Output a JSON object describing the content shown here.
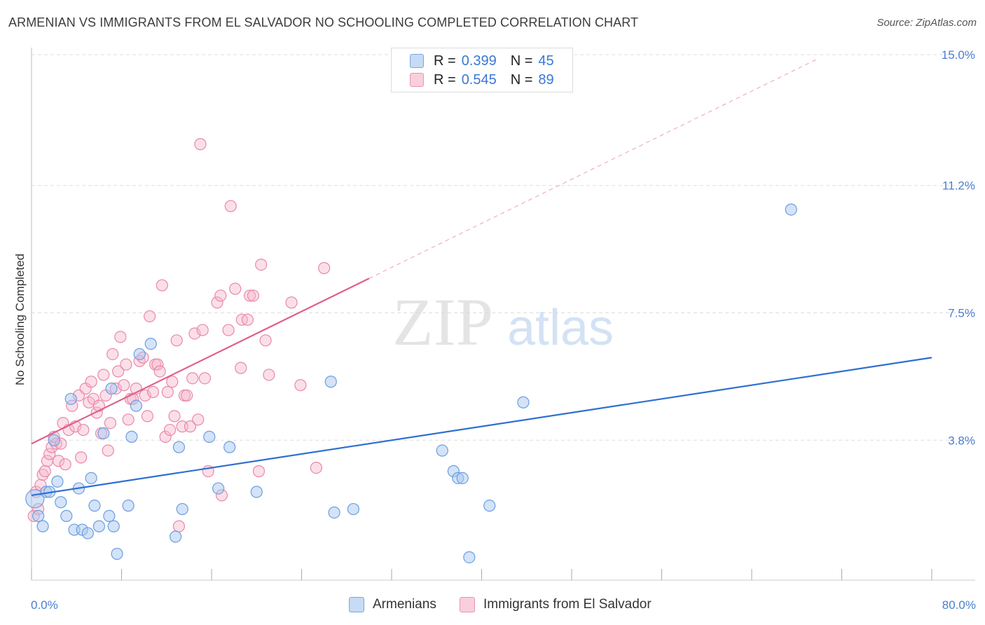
{
  "header": {
    "title": "ARMENIAN VS IMMIGRANTS FROM EL SALVADOR NO SCHOOLING COMPLETED CORRELATION CHART",
    "source": "Source: ZipAtlas.com"
  },
  "legend_top": {
    "rows": [
      {
        "r_label": "R =",
        "r_value": "0.399",
        "n_label": "N =",
        "n_value": "45"
      },
      {
        "r_label": "R =",
        "r_value": "0.545",
        "n_label": "N =",
        "n_value": "89"
      }
    ]
  },
  "legend_bottom": {
    "items": [
      {
        "label": "Armenians"
      },
      {
        "label": "Immigrants from El Salvador"
      }
    ]
  },
  "watermark": {
    "zip": "ZIP",
    "atlas": "atlas"
  },
  "colors": {
    "blue_fill": "#a9c8f0",
    "blue_stroke": "#6a9ee0",
    "blue_line": "#2e6fd0",
    "pink_fill": "#f6b8cb",
    "pink_stroke": "#e889a8",
    "pink_line": "#e0608a",
    "axis_text": "#4a7fd0",
    "grid": "#dddddd"
  },
  "chart_data": {
    "type": "scatter",
    "title": "ARMENIAN VS IMMIGRANTS FROM EL SALVADOR NO SCHOOLING COMPLETED CORRELATION CHART",
    "xlabel": "",
    "ylabel": "No Schooling Completed",
    "xlim": [
      0,
      80
    ],
    "ylim": [
      0,
      15
    ],
    "x_tick_labels": [
      "0.0%",
      "80.0%"
    ],
    "y_ticks": [
      3.8,
      7.5,
      11.2,
      15.0
    ],
    "y_tick_labels": [
      "3.8%",
      "7.5%",
      "11.2%",
      "15.0%"
    ],
    "grid": true,
    "legend_position": "top-center",
    "series": [
      {
        "name": "Armenians",
        "color": "#a9c8f0",
        "r": 0.399,
        "n": 45,
        "trend": {
          "x0": 0,
          "y0": 2.2,
          "x1": 80,
          "y1": 6.2,
          "dashed_to": null
        },
        "points": [
          [
            0.3,
            2.1
          ],
          [
            0.6,
            1.6
          ],
          [
            1.0,
            1.3
          ],
          [
            1.3,
            2.3
          ],
          [
            1.6,
            2.3
          ],
          [
            2.0,
            3.8
          ],
          [
            2.3,
            2.6
          ],
          [
            2.6,
            2.0
          ],
          [
            3.1,
            1.6
          ],
          [
            3.5,
            5.0
          ],
          [
            3.8,
            1.2
          ],
          [
            4.2,
            2.4
          ],
          [
            4.5,
            1.2
          ],
          [
            5.0,
            1.1
          ],
          [
            5.3,
            2.7
          ],
          [
            5.6,
            1.9
          ],
          [
            6.0,
            1.3
          ],
          [
            6.4,
            4.0
          ],
          [
            6.9,
            1.6
          ],
          [
            7.1,
            5.3
          ],
          [
            7.3,
            1.3
          ],
          [
            7.6,
            0.5
          ],
          [
            8.6,
            1.9
          ],
          [
            8.9,
            3.9
          ],
          [
            9.3,
            4.8
          ],
          [
            9.6,
            6.3
          ],
          [
            10.6,
            6.6
          ],
          [
            12.8,
            1.0
          ],
          [
            13.1,
            3.6
          ],
          [
            13.4,
            1.8
          ],
          [
            15.8,
            3.9
          ],
          [
            16.6,
            2.4
          ],
          [
            17.6,
            3.6
          ],
          [
            20.0,
            2.3
          ],
          [
            26.6,
            5.5
          ],
          [
            26.9,
            1.7
          ],
          [
            28.6,
            1.8
          ],
          [
            36.5,
            3.5
          ],
          [
            37.5,
            2.9
          ],
          [
            37.9,
            2.7
          ],
          [
            38.3,
            2.7
          ],
          [
            38.9,
            0.4
          ],
          [
            40.7,
            1.9
          ],
          [
            43.7,
            4.9
          ],
          [
            67.5,
            10.5
          ]
        ]
      },
      {
        "name": "Immigrants from El Salvador",
        "color": "#f6b8cb",
        "r": 0.545,
        "n": 89,
        "trend": {
          "x0": 0,
          "y0": 3.7,
          "x1": 30,
          "y1": 8.5,
          "dashed_to": [
            70,
            14.9
          ]
        },
        "points": [
          [
            0.2,
            1.6
          ],
          [
            0.4,
            2.3
          ],
          [
            0.6,
            1.8
          ],
          [
            0.8,
            2.5
          ],
          [
            1.0,
            2.8
          ],
          [
            1.2,
            2.9
          ],
          [
            1.4,
            3.2
          ],
          [
            1.6,
            3.4
          ],
          [
            1.8,
            3.6
          ],
          [
            2.0,
            3.9
          ],
          [
            2.2,
            3.7
          ],
          [
            2.4,
            3.2
          ],
          [
            2.6,
            3.7
          ],
          [
            2.8,
            4.3
          ],
          [
            3.0,
            3.1
          ],
          [
            3.3,
            4.1
          ],
          [
            3.6,
            4.8
          ],
          [
            3.9,
            4.2
          ],
          [
            4.2,
            5.1
          ],
          [
            4.4,
            3.3
          ],
          [
            4.6,
            4.1
          ],
          [
            4.8,
            5.3
          ],
          [
            5.1,
            4.9
          ],
          [
            5.3,
            5.5
          ],
          [
            5.5,
            5.0
          ],
          [
            5.8,
            4.6
          ],
          [
            6.0,
            4.8
          ],
          [
            6.2,
            4.0
          ],
          [
            6.4,
            5.7
          ],
          [
            6.6,
            5.1
          ],
          [
            6.8,
            3.5
          ],
          [
            7.0,
            4.3
          ],
          [
            7.2,
            6.3
          ],
          [
            7.5,
            5.3
          ],
          [
            7.7,
            5.8
          ],
          [
            7.9,
            6.8
          ],
          [
            8.2,
            5.4
          ],
          [
            8.4,
            6.0
          ],
          [
            8.6,
            4.4
          ],
          [
            8.8,
            5.0
          ],
          [
            9.0,
            5.0
          ],
          [
            9.3,
            5.3
          ],
          [
            9.6,
            6.1
          ],
          [
            9.9,
            6.2
          ],
          [
            10.1,
            5.1
          ],
          [
            10.3,
            4.5
          ],
          [
            10.5,
            7.4
          ],
          [
            10.8,
            5.2
          ],
          [
            11.0,
            6.0
          ],
          [
            11.2,
            6.0
          ],
          [
            11.4,
            5.8
          ],
          [
            11.6,
            8.3
          ],
          [
            11.9,
            3.9
          ],
          [
            12.1,
            5.2
          ],
          [
            12.3,
            4.1
          ],
          [
            12.5,
            5.5
          ],
          [
            12.7,
            4.5
          ],
          [
            12.9,
            6.7
          ],
          [
            13.1,
            1.3
          ],
          [
            13.4,
            4.2
          ],
          [
            13.6,
            5.1
          ],
          [
            13.8,
            5.1
          ],
          [
            14.1,
            4.2
          ],
          [
            14.3,
            5.6
          ],
          [
            14.5,
            6.9
          ],
          [
            14.8,
            4.4
          ],
          [
            15.0,
            12.4
          ],
          [
            15.2,
            7.0
          ],
          [
            15.4,
            5.6
          ],
          [
            15.7,
            2.9
          ],
          [
            16.5,
            7.8
          ],
          [
            16.8,
            8.0
          ],
          [
            16.9,
            2.2
          ],
          [
            17.5,
            7.0
          ],
          [
            17.7,
            10.6
          ],
          [
            18.1,
            8.2
          ],
          [
            18.7,
            7.3
          ],
          [
            19.2,
            7.3
          ],
          [
            19.4,
            8.0
          ],
          [
            19.7,
            8.0
          ],
          [
            20.2,
            2.9
          ],
          [
            20.4,
            8.9
          ],
          [
            20.8,
            6.7
          ],
          [
            21.1,
            5.7
          ],
          [
            23.1,
            7.8
          ],
          [
            23.9,
            5.4
          ],
          [
            25.3,
            3.0
          ],
          [
            26.0,
            8.8
          ],
          [
            18.6,
            5.9
          ]
        ]
      }
    ]
  }
}
